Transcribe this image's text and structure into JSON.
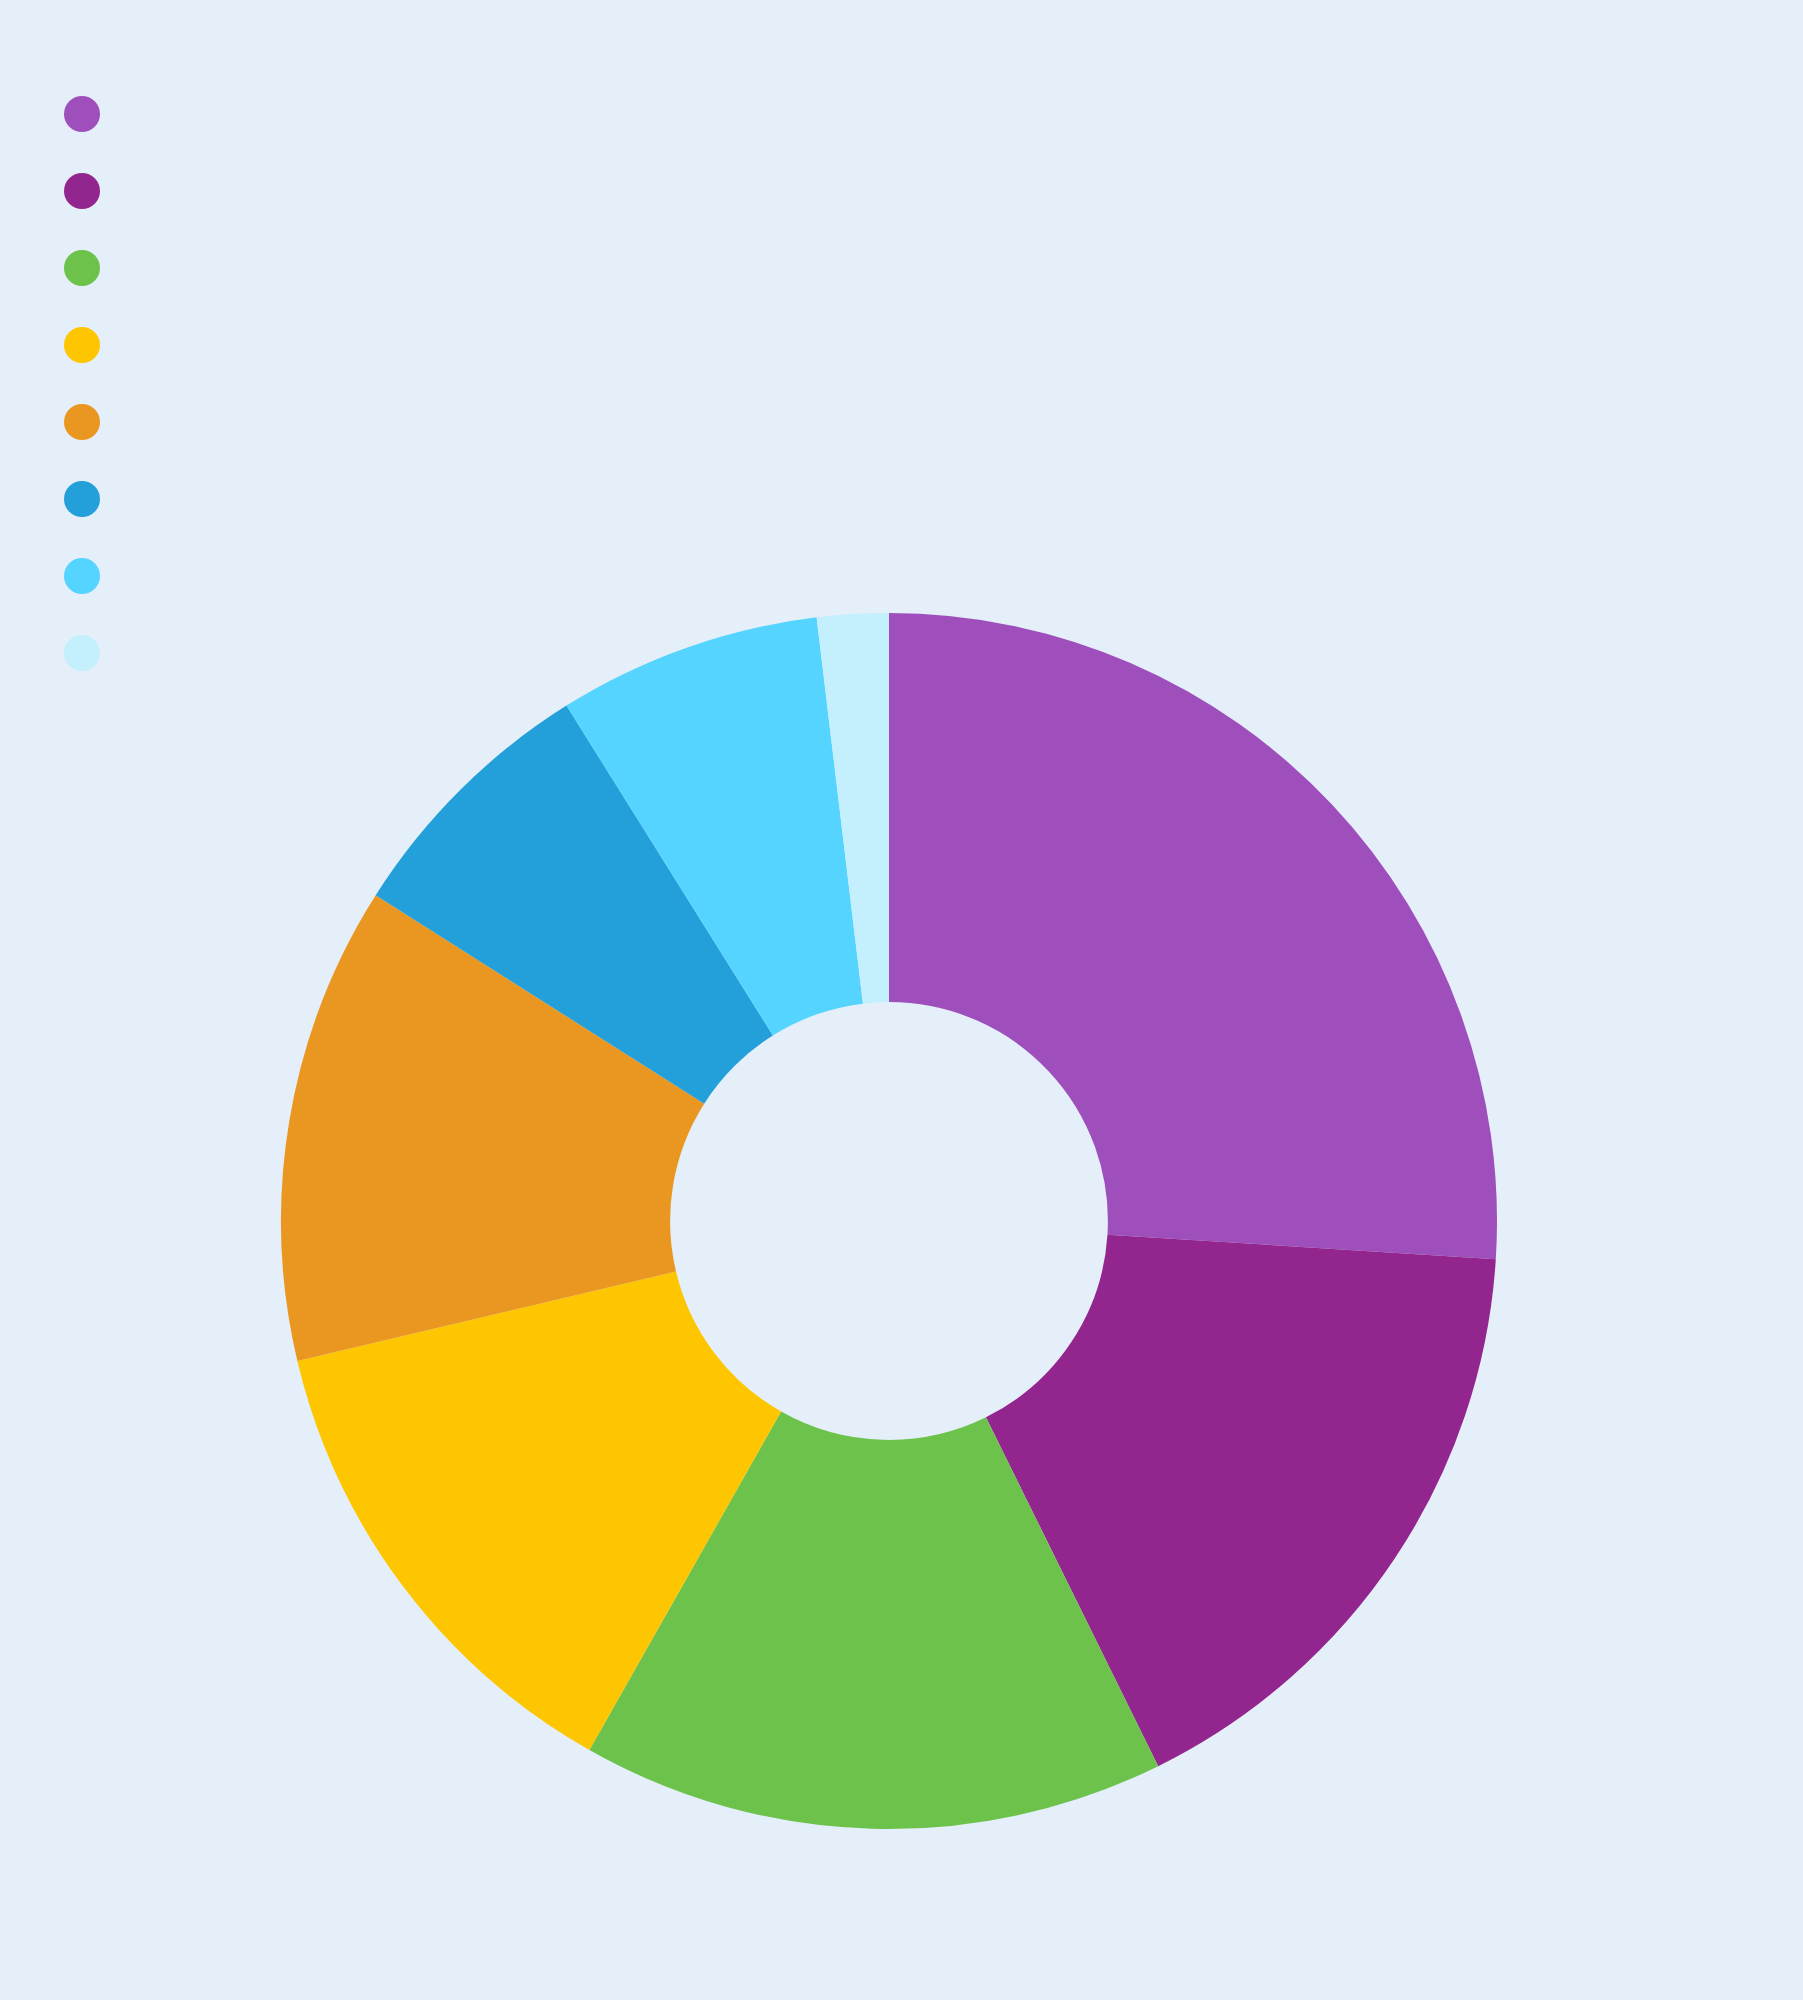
{
  "chart_data": {
    "type": "donut",
    "categories": [
      null,
      null,
      null,
      null,
      null,
      null,
      null,
      null
    ],
    "values": [
      26.0,
      16.7,
      15.5,
      13.1,
      12.7,
      7.1,
      7.0,
      1.9
    ],
    "colors": [
      "#9f4fbc",
      "#93268e",
      "#6dc24b",
      "#fec601",
      "#ea9722",
      "#239fda",
      "#54d4fe",
      "#c4effd"
    ]
  }
}
